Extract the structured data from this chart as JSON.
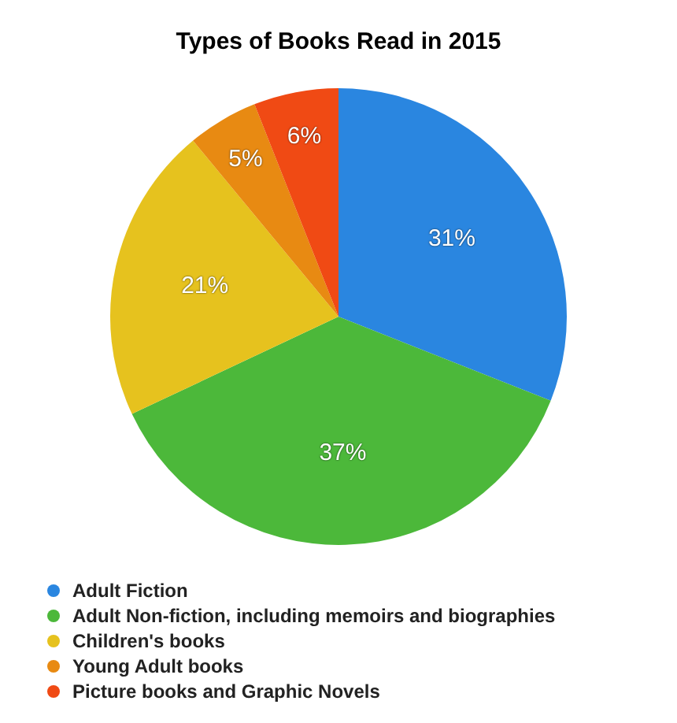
{
  "chart_data": {
    "type": "pie",
    "title": "Types of Books Read in 2015",
    "categories": [
      "Adult Fiction",
      "Adult Non-fiction, including memoirs and biographies",
      "Children's books",
      "Young Adult books",
      "Picture books and Graphic Novels"
    ],
    "values": [
      31,
      37,
      21,
      5,
      6
    ],
    "colors": [
      "#2a86e0",
      "#4cb83a",
      "#e6c21e",
      "#e88a12",
      "#f04a14"
    ],
    "value_labels": [
      "31%",
      "37%",
      "21%",
      "5%",
      "6%"
    ],
    "legend": "bottom"
  }
}
